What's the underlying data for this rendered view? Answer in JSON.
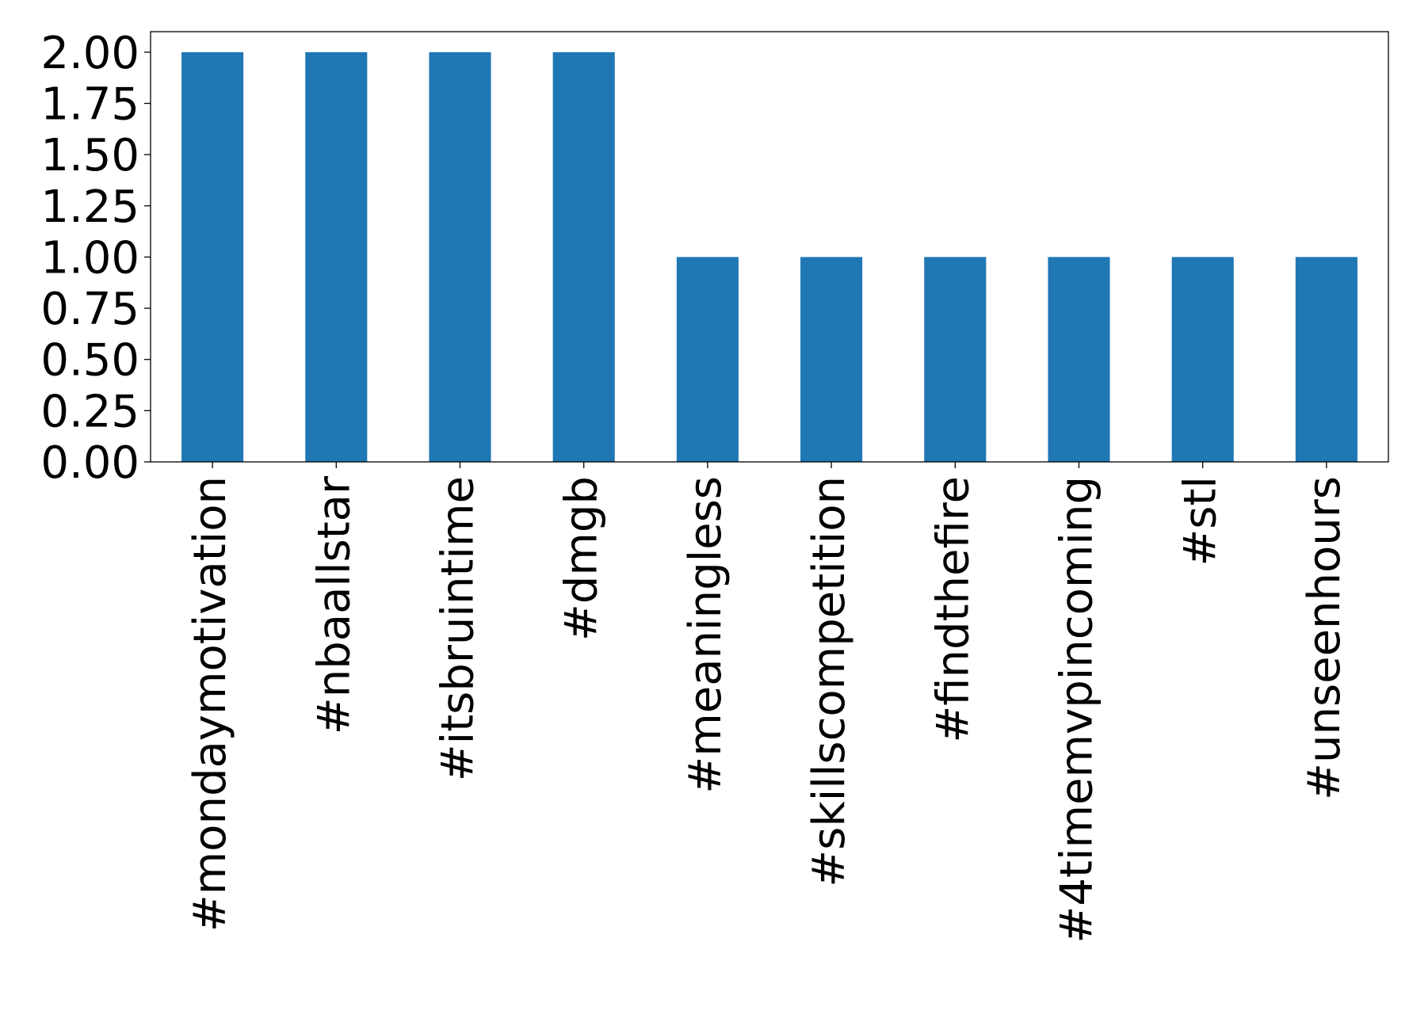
{
  "chart_data": {
    "type": "bar",
    "title": "",
    "xlabel": "",
    "ylabel": "",
    "categories": [
      "#mondaymotivation",
      "#nbaallstar",
      "#itsbruintime",
      "#dmgb",
      "#meaningless",
      "#skillscompetition",
      "#findthefire",
      "#4timemvpincoming",
      "#stl",
      "#unseenhours"
    ],
    "values": [
      2,
      2,
      2,
      2,
      1,
      1,
      1,
      1,
      1,
      1
    ],
    "ylim": [
      0,
      2.1
    ],
    "yticks": [
      "0.00",
      "0.25",
      "0.50",
      "0.75",
      "1.00",
      "1.25",
      "1.50",
      "1.75",
      "2.00"
    ],
    "grid": false,
    "bar_color": "#1f77b4"
  }
}
